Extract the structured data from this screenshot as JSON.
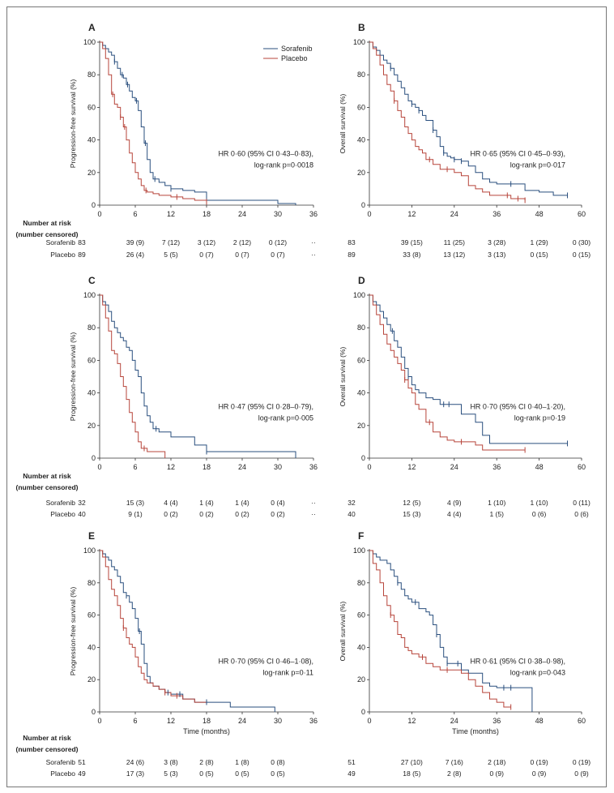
{
  "colors": {
    "sorafenib": "#2a4f7e",
    "placebo": "#b7453b",
    "axis": "#333333"
  },
  "legend": {
    "sorafenib": "Sorafenib",
    "placebo": "Placebo"
  },
  "risk_header": {
    "line1": "Number at risk",
    "line2": "(number censored)"
  },
  "risk_rows": {
    "sorafenib": "Sorafenib",
    "placebo": "Placebo"
  },
  "chart_data": [
    {
      "id": "A",
      "type": "line",
      "panel_label": "A",
      "ylabel": "Progression-free survival (%)",
      "xlabel": "",
      "xlim": [
        0,
        36
      ],
      "ylim": [
        0,
        100
      ],
      "xticks": [
        "0",
        "6",
        "12",
        "18",
        "24",
        "30",
        "36"
      ],
      "yticks": [
        "0",
        "20",
        "40",
        "60",
        "80",
        "100"
      ],
      "hr_line1": "HR 0·60 (95% CI 0·43–0·83),",
      "hr_line2": "log-rank p=0·0018",
      "show_legend": true,
      "series": [
        {
          "name": "Sorafenib",
          "x": [
            0,
            0.5,
            1,
            1.5,
            2,
            2.5,
            3,
            3.5,
            4,
            4.5,
            5,
            5.5,
            6,
            6.5,
            7,
            7.5,
            8,
            8.5,
            9,
            10,
            11,
            12,
            13,
            14,
            15,
            16,
            17,
            18,
            20,
            24,
            27,
            30,
            33
          ],
          "y": [
            100,
            98,
            96,
            94,
            92,
            88,
            84,
            80,
            78,
            74,
            70,
            66,
            64,
            58,
            48,
            38,
            28,
            20,
            16,
            14,
            12,
            10,
            10,
            9,
            9,
            8,
            8,
            3,
            3,
            3,
            3,
            1,
            0
          ]
        },
        {
          "name": "Placebo",
          "x": [
            0,
            0.5,
            1,
            1.5,
            2,
            2.5,
            3,
            3.5,
            4,
            4.5,
            5,
            5.5,
            6,
            6.5,
            7,
            7.5,
            8,
            9,
            10,
            12,
            14,
            16,
            18
          ],
          "y": [
            100,
            96,
            90,
            80,
            68,
            62,
            60,
            54,
            48,
            40,
            32,
            26,
            20,
            16,
            12,
            9,
            8,
            7,
            6,
            5,
            4,
            3,
            2
          ]
        }
      ],
      "censor": [
        {
          "series": 0,
          "x": [
            2.5,
            3.8,
            4.7,
            6.2,
            7.7,
            9.3,
            12,
            18
          ]
        },
        {
          "series": 1,
          "x": [
            2.2,
            3.5,
            4.2,
            7.8,
            13,
            18
          ]
        }
      ],
      "risk_sorafenib": [
        "83",
        "39 (9)",
        "7 (12)",
        "3 (12)",
        "2 (12)",
        "0 (12)",
        "··"
      ],
      "risk_placebo": [
        "89",
        "26 (4)",
        "5 (5)",
        "0 (7)",
        "0 (7)",
        "0 (7)",
        "··"
      ]
    },
    {
      "id": "B",
      "type": "line",
      "panel_label": "B",
      "ylabel": "Overall survival (%)",
      "xlabel": "",
      "xlim": [
        0,
        60
      ],
      "ylim": [
        0,
        100
      ],
      "xticks": [
        "0",
        "12",
        "24",
        "36",
        "48",
        "60"
      ],
      "yticks": [
        "0",
        "20",
        "40",
        "60",
        "80",
        "100"
      ],
      "hr_line1": "HR 0·65 (95% CI 0·45–0·93),",
      "hr_line2": "log-rank p=0·017",
      "show_legend": false,
      "series": [
        {
          "name": "Sorafenib",
          "x": [
            0,
            1,
            2,
            3,
            4,
            5,
            6,
            7,
            8,
            9,
            10,
            11,
            12,
            13,
            14,
            15,
            16,
            17,
            18,
            19,
            20,
            21,
            22,
            23,
            24,
            26,
            28,
            30,
            32,
            34,
            36,
            40,
            44,
            48,
            52,
            56
          ],
          "y": [
            100,
            97,
            95,
            92,
            89,
            87,
            84,
            80,
            76,
            72,
            68,
            64,
            62,
            60,
            58,
            55,
            52,
            52,
            46,
            42,
            36,
            32,
            30,
            29,
            28,
            27,
            24,
            20,
            16,
            14,
            13,
            13,
            9,
            8,
            6,
            6
          ]
        },
        {
          "name": "Placebo",
          "x": [
            0,
            1,
            2,
            3,
            4,
            5,
            6,
            7,
            8,
            9,
            10,
            11,
            12,
            13,
            14,
            15,
            16,
            18,
            20,
            22,
            24,
            26,
            28,
            30,
            32,
            34,
            36,
            40,
            42,
            44
          ],
          "y": [
            100,
            96,
            92,
            86,
            80,
            74,
            70,
            64,
            58,
            54,
            48,
            44,
            40,
            36,
            34,
            32,
            28,
            25,
            22,
            22,
            20,
            18,
            12,
            10,
            8,
            6,
            6,
            4,
            4,
            3
          ]
        }
      ],
      "censor": [
        {
          "series": 0,
          "x": [
            6,
            12,
            14,
            18,
            21,
            24,
            26,
            40,
            56
          ]
        },
        {
          "series": 1,
          "x": [
            7,
            17,
            22,
            39,
            42,
            44
          ]
        }
      ],
      "risk_sorafenib": [
        "83",
        "39 (15)",
        "11 (25)",
        "3 (28)",
        "1 (29)",
        "0 (30)"
      ],
      "risk_placebo": [
        "89",
        "33 (8)",
        "13 (12)",
        "3 (13)",
        "0 (15)",
        "0 (15)"
      ]
    },
    {
      "id": "C",
      "type": "line",
      "panel_label": "C",
      "ylabel": "Progression-free survival (%)",
      "xlabel": "",
      "xlim": [
        0,
        36
      ],
      "ylim": [
        0,
        100
      ],
      "xticks": [
        "0",
        "6",
        "12",
        "18",
        "24",
        "30",
        "36"
      ],
      "yticks": [
        "0",
        "20",
        "40",
        "60",
        "80",
        "100"
      ],
      "hr_line1": "HR 0·47 (95% CI 0·28–0·79),",
      "hr_line2": "log-rank p=0·005",
      "show_legend": false,
      "series": [
        {
          "name": "Sorafenib",
          "x": [
            0,
            0.5,
            1,
            1.5,
            2,
            2.5,
            3,
            3.5,
            4,
            4.5,
            5,
            5.5,
            6,
            6.5,
            7,
            7.5,
            8,
            8.5,
            9,
            10,
            12,
            14,
            16,
            18,
            20,
            24,
            30,
            33
          ],
          "y": [
            100,
            96,
            94,
            90,
            84,
            80,
            77,
            74,
            72,
            68,
            66,
            60,
            54,
            50,
            40,
            32,
            26,
            22,
            18,
            16,
            13,
            13,
            8,
            4,
            4,
            4,
            4,
            0
          ]
        },
        {
          "name": "Placebo",
          "x": [
            0,
            0.5,
            1,
            1.5,
            2,
            2.5,
            3,
            3.5,
            4,
            4.5,
            5,
            5.5,
            6,
            6.5,
            7,
            7.5,
            8,
            9,
            10,
            11
          ],
          "y": [
            100,
            94,
            86,
            78,
            66,
            64,
            58,
            50,
            44,
            36,
            28,
            22,
            16,
            10,
            6,
            6,
            4,
            4,
            4,
            0
          ]
        }
      ],
      "censor": [
        {
          "series": 0,
          "x": [
            9.5,
            18
          ]
        },
        {
          "series": 1,
          "x": [
            7.5
          ]
        }
      ],
      "risk_sorafenib": [
        "32",
        "15 (3)",
        "4 (4)",
        "1 (4)",
        "1 (4)",
        "0 (4)",
        "··"
      ],
      "risk_placebo": [
        "40",
        "9 (1)",
        "0 (2)",
        "0 (2)",
        "0 (2)",
        "0 (2)",
        "··"
      ]
    },
    {
      "id": "D",
      "type": "line",
      "panel_label": "D",
      "ylabel": "Overall survival (%)",
      "xlabel": "",
      "xlim": [
        0,
        60
      ],
      "ylim": [
        0,
        100
      ],
      "xticks": [
        "0",
        "12",
        "24",
        "36",
        "48",
        "60"
      ],
      "yticks": [
        "0",
        "20",
        "40",
        "60",
        "80",
        "100"
      ],
      "hr_line1": "HR 0·70 (95% CI 0·40–1·20),",
      "hr_line2": "log-rank p=0·19",
      "show_legend": false,
      "series": [
        {
          "name": "Sorafenib",
          "x": [
            0,
            1,
            2,
            3,
            4,
            5,
            6,
            7,
            8,
            9,
            10,
            11,
            12,
            13,
            14,
            16,
            18,
            20,
            22,
            24,
            26,
            28,
            30,
            32,
            34,
            40,
            48,
            56
          ],
          "y": [
            100,
            96,
            94,
            90,
            86,
            82,
            78,
            72,
            68,
            62,
            55,
            50,
            45,
            42,
            40,
            37,
            36,
            33,
            33,
            33,
            27,
            27,
            22,
            14,
            9,
            9,
            9,
            9
          ]
        },
        {
          "name": "Placebo",
          "x": [
            0,
            1,
            2,
            3,
            4,
            5,
            6,
            7,
            8,
            9,
            10,
            11,
            12,
            13,
            14,
            16,
            18,
            20,
            22,
            24,
            26,
            28,
            30,
            32,
            34,
            40,
            44
          ],
          "y": [
            100,
            94,
            88,
            82,
            76,
            70,
            66,
            62,
            58,
            54,
            48,
            43,
            40,
            33,
            30,
            22,
            16,
            13,
            11,
            10,
            10,
            10,
            8,
            5,
            5,
            5,
            5
          ]
        }
      ],
      "censor": [
        {
          "series": 0,
          "x": [
            6.5,
            11,
            21,
            22.5,
            56
          ]
        },
        {
          "series": 1,
          "x": [
            10,
            17,
            26,
            44
          ]
        }
      ],
      "risk_sorafenib": [
        "32",
        "12 (5)",
        "4 (9)",
        "1 (10)",
        "1 (10)",
        "0 (11)"
      ],
      "risk_placebo": [
        "40",
        "15 (3)",
        "4 (4)",
        "1 (5)",
        "0 (6)",
        "0 (6)"
      ]
    },
    {
      "id": "E",
      "type": "line",
      "panel_label": "E",
      "ylabel": "Progression-free survival (%)",
      "xlabel": "Time (months)",
      "xlim": [
        0,
        36
      ],
      "ylim": [
        0,
        100
      ],
      "xticks": [
        "0",
        "6",
        "12",
        "18",
        "24",
        "30",
        "36"
      ],
      "yticks": [
        "0",
        "20",
        "40",
        "60",
        "80",
        "100"
      ],
      "hr_line1": "HR 0·70 (95% CI 0·46–1·08),",
      "hr_line2": "log-rank p=0·11",
      "show_legend": false,
      "series": [
        {
          "name": "Sorafenib",
          "x": [
            0,
            0.5,
            1,
            1.5,
            2,
            2.5,
            3,
            3.5,
            4,
            4.5,
            5,
            5.5,
            6,
            6.5,
            7,
            7.5,
            8,
            8.5,
            9,
            10,
            11,
            12,
            14,
            16,
            18,
            22,
            26,
            29.5
          ],
          "y": [
            100,
            98,
            96,
            94,
            90,
            88,
            84,
            80,
            74,
            72,
            68,
            64,
            58,
            50,
            42,
            30,
            22,
            18,
            16,
            14,
            12,
            11,
            8,
            6,
            6,
            3,
            3,
            0
          ]
        },
        {
          "name": "Placebo",
          "x": [
            0,
            0.5,
            1,
            1.5,
            2,
            2.5,
            3,
            3.5,
            4,
            4.5,
            5,
            5.5,
            6,
            6.5,
            7,
            7.5,
            8,
            9,
            10,
            11,
            12,
            14,
            16,
            18
          ],
          "y": [
            100,
            96,
            90,
            82,
            76,
            72,
            66,
            58,
            52,
            46,
            42,
            40,
            34,
            28,
            24,
            20,
            18,
            16,
            14,
            12,
            10,
            8,
            6,
            5
          ]
        }
      ],
      "censor": [
        {
          "series": 0,
          "x": [
            4.5,
            6.7,
            11.5,
            13.5,
            18
          ]
        },
        {
          "series": 1,
          "x": [
            4,
            11,
            13
          ]
        }
      ],
      "risk_sorafenib": [
        "51",
        "24 (6)",
        "3 (8)",
        "2 (8)",
        "1 (8)",
        "0 (8)"
      ],
      "risk_placebo": [
        "49",
        "17 (3)",
        "5 (3)",
        "0 (5)",
        "0 (5)",
        "0 (5)"
      ]
    },
    {
      "id": "F",
      "type": "line",
      "panel_label": "F",
      "ylabel": "Overall survival (%)",
      "xlabel": "Time (months)",
      "xlim": [
        0,
        60
      ],
      "ylim": [
        0,
        100
      ],
      "xticks": [
        "0",
        "12",
        "24",
        "36",
        "48",
        "60"
      ],
      "yticks": [
        "0",
        "20",
        "40",
        "60",
        "80",
        "100"
      ],
      "hr_line1": "HR 0·61 (95% CI 0·38–0·98),",
      "hr_line2": "log-rank p=0·043",
      "show_legend": false,
      "series": [
        {
          "name": "Sorafenib",
          "x": [
            0,
            1,
            2,
            3,
            4,
            5,
            6,
            7,
            8,
            9,
            10,
            11,
            12,
            14,
            16,
            17,
            18,
            19,
            20,
            21,
            22,
            24,
            26,
            28,
            30,
            32,
            34,
            36,
            40,
            44,
            46
          ],
          "y": [
            100,
            98,
            96,
            94,
            94,
            92,
            88,
            84,
            80,
            76,
            72,
            70,
            68,
            64,
            62,
            60,
            54,
            48,
            40,
            34,
            30,
            30,
            26,
            24,
            24,
            18,
            16,
            15,
            15,
            15,
            0
          ]
        },
        {
          "name": "Placebo",
          "x": [
            0,
            1,
            2,
            3,
            4,
            5,
            6,
            7,
            8,
            9,
            10,
            11,
            12,
            14,
            16,
            18,
            20,
            22,
            24,
            26,
            28,
            30,
            32,
            34,
            36,
            38,
            40
          ],
          "y": [
            100,
            92,
            88,
            80,
            72,
            66,
            60,
            56,
            48,
            46,
            40,
            38,
            36,
            34,
            30,
            28,
            26,
            26,
            26,
            24,
            20,
            16,
            12,
            8,
            6,
            3,
            3
          ]
        }
      ],
      "censor": [
        {
          "series": 0,
          "x": [
            8,
            13,
            19,
            22,
            25,
            38,
            40
          ]
        },
        {
          "series": 1,
          "x": [
            6,
            15,
            22,
            40
          ]
        }
      ],
      "risk_sorafenib": [
        "51",
        "27 (10)",
        "7 (16)",
        "2 (18)",
        "0 (19)",
        "0 (19)"
      ],
      "risk_placebo": [
        "49",
        "18 (5)",
        "2 (8)",
        "0 (9)",
        "0 (9)",
        "0 (9)"
      ]
    }
  ]
}
